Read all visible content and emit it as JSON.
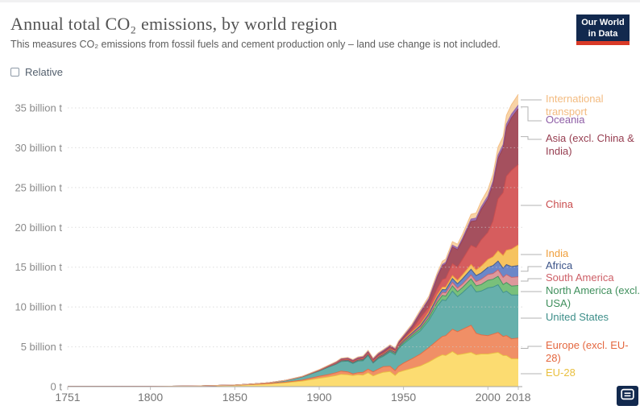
{
  "header": {
    "title": "Annual total CO₂ emissions, by world region",
    "subtitle": "This measures CO₂ emissions from fossil fuels and cement production only – land use change is not included.",
    "logo": {
      "line1": "Our World",
      "line2": "in Data"
    }
  },
  "controls": {
    "relative_label": "Relative",
    "relative_checked": false
  },
  "footer": {
    "embed_icon": "embed-envelope-icon"
  },
  "chart_data": {
    "type": "area",
    "stacked": true,
    "title": "Annual total CO₂ emissions, by world region",
    "unit": "billion t",
    "xlim": [
      1751,
      2018
    ],
    "ylim": [
      0,
      37
    ],
    "grid": "dashed-horizontal",
    "legend_position": "right",
    "xticks": [
      1751,
      1800,
      1850,
      1900,
      1950,
      2000,
      2018
    ],
    "yticks": [
      {
        "v": 0,
        "label": "0 t"
      },
      {
        "v": 5,
        "label": "5 billion t"
      },
      {
        "v": 10,
        "label": "10 billion t"
      },
      {
        "v": 15,
        "label": "15 billion t"
      },
      {
        "v": 20,
        "label": "20 billion t"
      },
      {
        "v": 25,
        "label": "25 billion t"
      },
      {
        "v": 30,
        "label": "30 billion t"
      },
      {
        "v": 35,
        "label": "35 billion t"
      }
    ],
    "x": [
      1751,
      1775,
      1800,
      1825,
      1850,
      1860,
      1870,
      1880,
      1890,
      1900,
      1905,
      1910,
      1913,
      1917,
      1920,
      1923,
      1926,
      1929,
      1932,
      1935,
      1938,
      1942,
      1945,
      1947,
      1950,
      1955,
      1960,
      1965,
      1970,
      1973,
      1975,
      1979,
      1982,
      1985,
      1990,
      1993,
      1996,
      2000,
      2003,
      2006,
      2009,
      2011,
      2014,
      2018
    ],
    "series": [
      {
        "name": "EU-28",
        "color": "#fcdc71",
        "edge": "#e9bf3e",
        "values": [
          0.009,
          0.015,
          0.03,
          0.06,
          0.17,
          0.25,
          0.35,
          0.5,
          0.7,
          1.05,
          1.2,
          1.4,
          1.55,
          1.5,
          1.4,
          1.5,
          1.45,
          1.75,
          1.35,
          1.6,
          1.8,
          1.9,
          1.4,
          1.8,
          2.0,
          2.3,
          2.6,
          3.1,
          3.7,
          4.0,
          3.9,
          4.4,
          4.0,
          4.1,
          4.3,
          4.0,
          4.1,
          4.1,
          4.2,
          4.3,
          3.9,
          3.9,
          3.5,
          3.5
        ]
      },
      {
        "name": "Europe (excl. EU-28)",
        "color": "#f08f66",
        "edge": "#e4673f",
        "values": [
          0,
          0,
          0.001,
          0.003,
          0.01,
          0.02,
          0.03,
          0.06,
          0.12,
          0.25,
          0.3,
          0.35,
          0.4,
          0.35,
          0.2,
          0.25,
          0.35,
          0.45,
          0.5,
          0.6,
          0.7,
          0.65,
          0.6,
          0.75,
          0.95,
          1.2,
          1.5,
          1.8,
          2.1,
          2.3,
          2.5,
          2.8,
          2.9,
          3.1,
          3.4,
          2.7,
          2.4,
          2.3,
          2.4,
          2.5,
          2.4,
          2.5,
          2.5,
          2.6
        ]
      },
      {
        "name": "United States",
        "color": "#66b0ab",
        "edge": "#3d8e89",
        "values": [
          0,
          0,
          0.0003,
          0.003,
          0.02,
          0.05,
          0.1,
          0.2,
          0.4,
          0.66,
          0.9,
          1.05,
          1.2,
          1.35,
          1.3,
          1.45,
          1.45,
          1.7,
          1.1,
          1.3,
          1.3,
          1.8,
          2.0,
          2.2,
          2.4,
          2.7,
          2.9,
          3.4,
          4.3,
          4.6,
          4.4,
          4.8,
          4.4,
          4.6,
          5.1,
          5.2,
          5.5,
          6.0,
          5.9,
          6.0,
          5.5,
          5.6,
          5.5,
          5.4
        ]
      },
      {
        "name": "North America (excl. USA)",
        "color": "#79c07b",
        "edge": "#3f8f5c",
        "values": [
          0,
          0,
          0,
          0,
          0.001,
          0.001,
          0.002,
          0.005,
          0.01,
          0.03,
          0.04,
          0.06,
          0.07,
          0.08,
          0.08,
          0.08,
          0.09,
          0.1,
          0.08,
          0.09,
          0.1,
          0.13,
          0.15,
          0.16,
          0.18,
          0.22,
          0.27,
          0.35,
          0.5,
          0.55,
          0.57,
          0.65,
          0.62,
          0.65,
          0.72,
          0.75,
          0.82,
          0.95,
          0.98,
          1.05,
          1.02,
          1.08,
          1.12,
          1.2
        ]
      },
      {
        "name": "South America",
        "color": "#dd989b",
        "edge": "#cd5e66",
        "values": [
          0,
          0,
          0,
          0,
          0.001,
          0.001,
          0.002,
          0.003,
          0.005,
          0.01,
          0.015,
          0.02,
          0.03,
          0.035,
          0.04,
          0.045,
          0.05,
          0.05,
          0.05,
          0.06,
          0.07,
          0.08,
          0.09,
          0.1,
          0.12,
          0.15,
          0.2,
          0.25,
          0.32,
          0.38,
          0.4,
          0.45,
          0.45,
          0.45,
          0.5,
          0.55,
          0.65,
          0.72,
          0.72,
          0.82,
          0.9,
          1.0,
          1.1,
          1.1
        ]
      },
      {
        "name": "Africa",
        "color": "#6b87c8",
        "edge": "#3c5489",
        "values": [
          0,
          0,
          0,
          0,
          0.001,
          0.001,
          0.002,
          0.003,
          0.005,
          0.01,
          0.015,
          0.02,
          0.025,
          0.03,
          0.03,
          0.035,
          0.04,
          0.04,
          0.04,
          0.05,
          0.06,
          0.07,
          0.08,
          0.1,
          0.12,
          0.15,
          0.19,
          0.25,
          0.32,
          0.36,
          0.4,
          0.48,
          0.55,
          0.65,
          0.72,
          0.75,
          0.8,
          0.9,
          1.0,
          1.1,
          1.15,
          1.25,
          1.35,
          1.4
        ]
      },
      {
        "name": "India",
        "color": "#f6c35f",
        "edge": "#ef9f3c",
        "values": [
          0,
          0,
          0,
          0,
          0.0002,
          0.001,
          0.003,
          0.01,
          0.02,
          0.03,
          0.04,
          0.05,
          0.06,
          0.07,
          0.07,
          0.07,
          0.08,
          0.09,
          0.09,
          0.1,
          0.1,
          0.11,
          0.12,
          0.12,
          0.13,
          0.15,
          0.19,
          0.25,
          0.28,
          0.3,
          0.33,
          0.36,
          0.42,
          0.5,
          0.6,
          0.7,
          0.85,
          1.0,
          1.1,
          1.3,
          1.6,
          1.8,
          2.2,
          2.6
        ]
      },
      {
        "name": "China",
        "color": "#d65d5e",
        "edge": "#c94d4e",
        "values": [
          0,
          0,
          0,
          0,
          0,
          0,
          0.001,
          0.002,
          0.005,
          0.01,
          0.015,
          0.02,
          0.02,
          0.025,
          0.03,
          0.03,
          0.035,
          0.04,
          0.04,
          0.045,
          0.05,
          0.05,
          0.05,
          0.06,
          0.08,
          0.25,
          0.8,
          0.55,
          0.8,
          0.95,
          1.1,
          1.5,
          1.65,
          1.95,
          2.4,
          2.8,
          3.3,
          3.4,
          4.5,
          6.5,
          7.9,
          9.3,
          9.9,
          10.1
        ]
      },
      {
        "name": "Asia (excl. China & India)",
        "color": "#a5505e",
        "edge": "#963d50",
        "values": [
          0,
          0,
          0,
          0,
          0.001,
          0.002,
          0.003,
          0.01,
          0.02,
          0.05,
          0.07,
          0.1,
          0.12,
          0.13,
          0.15,
          0.15,
          0.17,
          0.2,
          0.2,
          0.25,
          0.3,
          0.3,
          0.2,
          0.25,
          0.3,
          0.45,
          0.65,
          0.95,
          1.45,
          1.7,
          1.8,
          2.1,
          2.2,
          2.4,
          3.0,
          3.4,
          3.8,
          4.2,
          4.6,
          5.1,
          5.6,
          6.1,
          6.6,
          7.0
        ]
      },
      {
        "name": "Oceania",
        "color": "#9e72b4",
        "edge": "#8f5fa7",
        "values": [
          0,
          0,
          0,
          0,
          0,
          0,
          0.001,
          0.003,
          0.01,
          0.01,
          0.015,
          0.02,
          0.025,
          0.03,
          0.03,
          0.035,
          0.04,
          0.04,
          0.04,
          0.045,
          0.05,
          0.055,
          0.06,
          0.065,
          0.07,
          0.09,
          0.11,
          0.14,
          0.18,
          0.2,
          0.21,
          0.23,
          0.24,
          0.26,
          0.3,
          0.32,
          0.34,
          0.38,
          0.4,
          0.42,
          0.43,
          0.44,
          0.45,
          0.45
        ]
      },
      {
        "name": "International transport",
        "color": "#f8d3a6",
        "edge": "#f3bb80",
        "values": [
          0,
          0,
          0,
          0,
          0,
          0.001,
          0.002,
          0.003,
          0.005,
          0.02,
          0.03,
          0.05,
          0.07,
          0.07,
          0.08,
          0.09,
          0.09,
          0.1,
          0.1,
          0.11,
          0.12,
          0.11,
          0.1,
          0.12,
          0.15,
          0.2,
          0.25,
          0.3,
          0.35,
          0.4,
          0.4,
          0.45,
          0.45,
          0.5,
          0.6,
          0.63,
          0.7,
          0.8,
          0.85,
          1.0,
          1.0,
          1.1,
          1.2,
          1.35
        ]
      }
    ]
  }
}
